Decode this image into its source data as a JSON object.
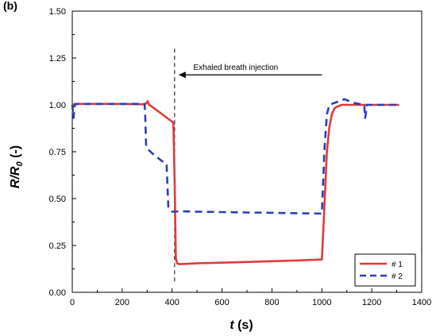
{
  "chart_data": {
    "type": "line",
    "panel_label": "(b)",
    "xlabel_italic": "t",
    "xlabel_rest": " (s)",
    "ylabel_main": "R/R",
    "ylabel_sub": "0",
    "ylabel_unit": " (-)",
    "xlim": [
      0,
      1400
    ],
    "ylim": [
      0.0,
      1.5
    ],
    "x_ticks": [
      "0",
      "200",
      "400",
      "600",
      "800",
      "1000",
      "1200",
      "1400"
    ],
    "y_ticks": [
      "0.00",
      "0.25",
      "0.50",
      "0.75",
      "1.00",
      "1.25",
      "1.50"
    ],
    "grid": false,
    "legend_position": "bottom-right",
    "annotation": {
      "text": "Exhaled breath injection",
      "marker_x": 410
    },
    "series": [
      {
        "name": "# 1",
        "color": "#e03a3a",
        "style": "solid",
        "x": [
          0,
          10,
          100,
          200,
          290,
          298,
          302,
          308,
          320,
          350,
          380,
          405,
          410,
          415,
          420,
          430,
          500,
          600,
          700,
          800,
          900,
          1000,
          1010,
          1020,
          1030,
          1040,
          1050,
          1060,
          1080,
          1100,
          1150,
          1200,
          1250,
          1310
        ],
        "y": [
          1.0,
          1.005,
          1.005,
          1.005,
          1.003,
          1.01,
          1.02,
          1.0,
          0.99,
          0.96,
          0.93,
          0.905,
          0.6,
          0.18,
          0.155,
          0.15,
          0.155,
          0.158,
          0.162,
          0.166,
          0.17,
          0.175,
          0.45,
          0.75,
          0.88,
          0.95,
          0.98,
          0.99,
          1.0,
          1.0,
          1.0,
          1.0,
          1.0,
          1.0
        ]
      },
      {
        "name": "# 2",
        "color": "#2b3fb8",
        "style": "dashed",
        "x": [
          0,
          5,
          10,
          20,
          100,
          200,
          280,
          290,
          292,
          296,
          305,
          330,
          360,
          375,
          378,
          385,
          400,
          410,
          430,
          500,
          600,
          700,
          800,
          900,
          1000,
          1010,
          1020,
          1030,
          1050,
          1070,
          1090,
          1110,
          1130,
          1150,
          1170,
          1173,
          1176,
          1180,
          1190,
          1250,
          1310
        ],
        "y": [
          1.0,
          0.93,
          1.0,
          1.005,
          1.005,
          1.005,
          1.005,
          1.005,
          0.95,
          0.78,
          0.76,
          0.73,
          0.7,
          0.69,
          0.68,
          0.45,
          0.43,
          0.43,
          0.432,
          0.43,
          0.428,
          0.426,
          0.424,
          0.422,
          0.42,
          0.75,
          0.95,
          1.0,
          1.01,
          1.02,
          1.03,
          1.02,
          1.01,
          1.005,
          1.0,
          0.93,
          0.95,
          1.0,
          1.0,
          1.0,
          1.0
        ]
      }
    ]
  }
}
